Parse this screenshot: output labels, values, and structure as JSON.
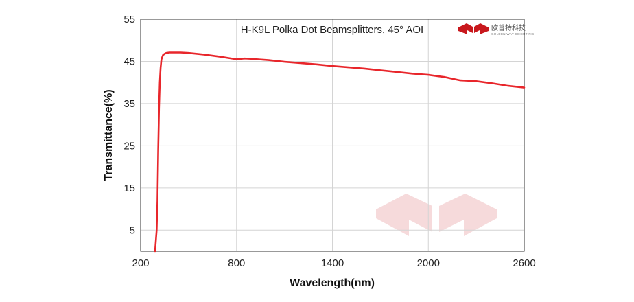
{
  "chart_data": {
    "type": "line",
    "title": "H-K9L Polka Dot Beamsplitters, 45° AOI",
    "xlabel": "Wavelength(nm)",
    "ylabel": "Transmittance(%)",
    "xlim": [
      200,
      2600
    ],
    "ylim": [
      0,
      55
    ],
    "xticks": [
      200,
      800,
      1400,
      2000,
      2600
    ],
    "yticks": [
      5,
      15,
      25,
      35,
      45,
      55
    ],
    "grid": true,
    "legend": "none",
    "series": [
      {
        "color": "#e8262b",
        "x": [
          290,
          300,
          305,
          310,
          315,
          320,
          325,
          330,
          340,
          350,
          360,
          380,
          400,
          450,
          500,
          600,
          700,
          800,
          850,
          900,
          1000,
          1100,
          1200,
          1300,
          1400,
          1500,
          1600,
          1700,
          1800,
          1900,
          2000,
          2100,
          2200,
          2300,
          2400,
          2500,
          2600
        ],
        "y": [
          0,
          5,
          12,
          24,
          34,
          40,
          43.5,
          45.5,
          46.5,
          46.8,
          47,
          47.1,
          47.1,
          47.1,
          47,
          46.6,
          46.1,
          45.5,
          45.7,
          45.6,
          45.3,
          44.9,
          44.6,
          44.3,
          43.9,
          43.6,
          43.3,
          42.9,
          42.5,
          42.1,
          41.8,
          41.3,
          40.5,
          40.3,
          39.8,
          39.2,
          38.8
        ]
      }
    ],
    "logo": {
      "text_cn": "欧普特科技",
      "text_en": "GOLDEN WAY SCIENTIFIC"
    }
  }
}
